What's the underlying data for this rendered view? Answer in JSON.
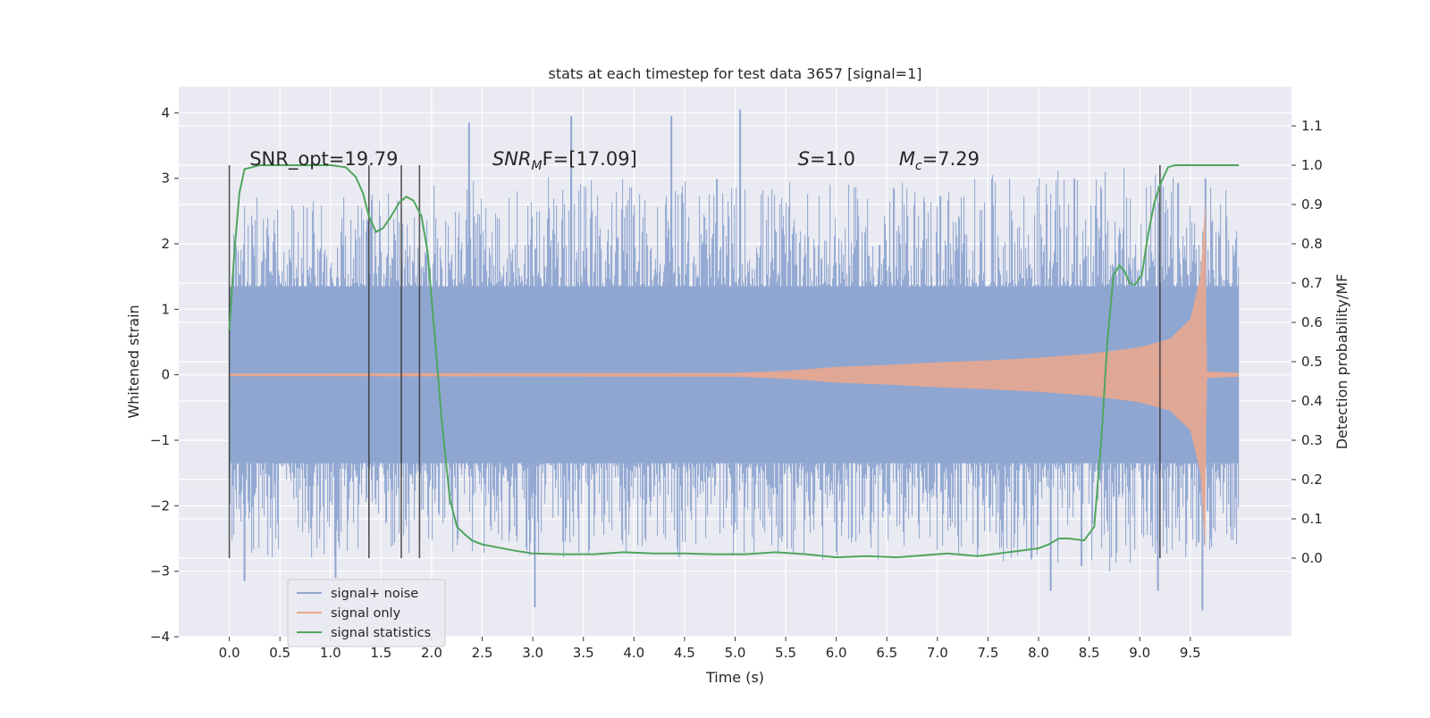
{
  "chart_data": {
    "type": "line",
    "title": "stats at each timestep for test data 3657 [signal=1]",
    "xlabel": "Time (s)",
    "ylabel_left": "Whitened strain",
    "ylabel_right": "Detection probability/MF",
    "xlim": [
      -0.5,
      10.5
    ],
    "ylim_left": [
      -4,
      4.4
    ],
    "ylim_right": [
      -0.2,
      1.2
    ],
    "x_ticks": [
      "0.0",
      "0.5",
      "1.0",
      "1.5",
      "2.0",
      "2.5",
      "3.0",
      "3.5",
      "4.0",
      "4.5",
      "5.0",
      "5.5",
      "6.0",
      "6.5",
      "7.0",
      "7.5",
      "8.0",
      "8.5",
      "9.0",
      "9.5"
    ],
    "y_ticks_left": [
      "4",
      "3",
      "2",
      "1",
      "0",
      "−1",
      "−2",
      "−3",
      "−4"
    ],
    "y_ticks_right": [
      "1.1",
      "1.0",
      "0.9",
      "0.8",
      "0.7",
      "0.6",
      "0.5",
      "0.4",
      "0.3",
      "0.2",
      "0.1",
      "0.0"
    ],
    "grid": true,
    "legend_position": "lower-left",
    "annotations": {
      "snr_opt": "SNR_opt=19.79",
      "snr_mf_base": "SNR",
      "snr_mf_sub": "M",
      "snr_mf_rest": "F=[17.09]",
      "s_var": "S",
      "s_rest": "=1.0",
      "mc_var": "M",
      "mc_sub": "c",
      "mc_rest": "=7.29"
    },
    "series": [
      {
        "name": "signal+ noise",
        "color": "#8fa6d1",
        "axis": "left",
        "x_range": [
          0.0,
          9.98
        ],
        "envelope": {
          "x": [
            0.0,
            1.0,
            2.0,
            3.0,
            4.0,
            5.0,
            6.0,
            7.0,
            8.0,
            9.0,
            9.98
          ],
          "upper": [
            2.7,
            2.8,
            2.9,
            3.1,
            3.0,
            3.0,
            2.9,
            3.0,
            3.1,
            3.2,
            2.8
          ],
          "lower": [
            -2.8,
            -2.8,
            -2.7,
            -2.8,
            -2.8,
            -2.8,
            -2.9,
            -2.8,
            -2.9,
            -3.1,
            -2.6
          ]
        },
        "peaks": [
          {
            "x": 0.15,
            "y": -3.15
          },
          {
            "x": 1.05,
            "y": -3.1
          },
          {
            "x": 2.37,
            "y": 3.85
          },
          {
            "x": 3.02,
            "y": -3.55
          },
          {
            "x": 3.38,
            "y": 3.95
          },
          {
            "x": 4.37,
            "y": 3.95
          },
          {
            "x": 5.05,
            "y": 4.05
          },
          {
            "x": 8.12,
            "y": -3.3
          },
          {
            "x": 9.18,
            "y": -3.3
          },
          {
            "x": 9.62,
            "y": -3.6
          },
          {
            "x": 9.65,
            "y": 3.0
          }
        ]
      },
      {
        "name": "signal only",
        "color": "#e8a78f",
        "axis": "left",
        "chirp_envelope": {
          "x": [
            0.0,
            5.0,
            5.5,
            6.0,
            6.5,
            7.0,
            7.5,
            8.0,
            8.5,
            9.0,
            9.3,
            9.5,
            9.6,
            9.65,
            9.66,
            9.98
          ],
          "amplitude": [
            0.02,
            0.03,
            0.06,
            0.12,
            0.15,
            0.19,
            0.22,
            0.26,
            0.32,
            0.42,
            0.55,
            0.85,
            1.5,
            2.7,
            0.05,
            0.03
          ]
        }
      },
      {
        "name": "signal statistics",
        "color": "#4fa65d",
        "axis": "right",
        "x": [
          0.0,
          0.05,
          0.1,
          0.15,
          0.3,
          0.5,
          0.8,
          1.0,
          1.15,
          1.25,
          1.32,
          1.38,
          1.45,
          1.52,
          1.6,
          1.68,
          1.75,
          1.82,
          1.9,
          1.96,
          2.02,
          2.1,
          2.18,
          2.25,
          2.33,
          2.4,
          2.5,
          2.6,
          2.8,
          3.0,
          3.3,
          3.6,
          3.9,
          4.2,
          4.5,
          4.8,
          5.1,
          5.4,
          5.7,
          6.0,
          6.3,
          6.6,
          6.9,
          7.1,
          7.4,
          7.7,
          8.0,
          8.1,
          8.2,
          8.3,
          8.45,
          8.55,
          8.62,
          8.68,
          8.74,
          8.8,
          8.85,
          8.9,
          8.95,
          9.02,
          9.08,
          9.14,
          9.2,
          9.28,
          9.35,
          9.45,
          9.6,
          9.8,
          9.98
        ],
        "y": [
          0.58,
          0.78,
          0.93,
          0.99,
          1.0,
          1.0,
          1.0,
          1.0,
          0.995,
          0.97,
          0.93,
          0.87,
          0.83,
          0.84,
          0.87,
          0.905,
          0.92,
          0.91,
          0.87,
          0.78,
          0.6,
          0.35,
          0.15,
          0.08,
          0.06,
          0.045,
          0.035,
          0.03,
          0.02,
          0.012,
          0.01,
          0.01,
          0.015,
          0.012,
          0.012,
          0.01,
          0.01,
          0.015,
          0.01,
          0.002,
          0.005,
          0.002,
          0.008,
          0.012,
          0.005,
          0.015,
          0.025,
          0.035,
          0.05,
          0.05,
          0.045,
          0.08,
          0.3,
          0.55,
          0.72,
          0.745,
          0.73,
          0.7,
          0.695,
          0.72,
          0.82,
          0.9,
          0.95,
          0.995,
          1.0,
          1.0,
          1.0,
          1.0,
          1.0
        ]
      }
    ],
    "vertical_markers": {
      "color": "#3a3a3a",
      "y_range": [
        0.0,
        1.0
      ],
      "x": [
        0.0,
        1.38,
        1.7,
        1.88,
        9.2
      ]
    }
  }
}
